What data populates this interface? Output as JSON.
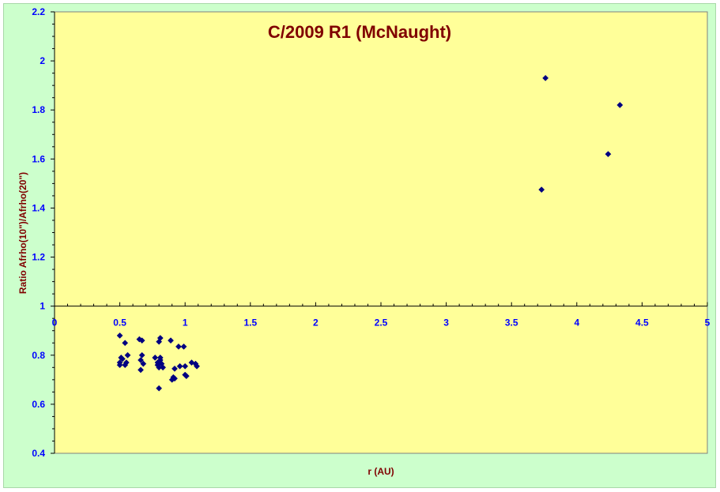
{
  "chart_data": {
    "type": "scatter",
    "title": "C/2009 R1 (McNaught)",
    "xlabel": "r (AU)",
    "ylabel": "Ratio Afrho(10\")/Afrho(20\")",
    "xlim": [
      0,
      5
    ],
    "ylim": [
      0.4,
      2.2
    ],
    "x_ticks": [
      "0",
      "0.5",
      "1",
      "1.5",
      "2",
      "2.5",
      "3",
      "3.5",
      "4",
      "4.5",
      "5"
    ],
    "y_ticks": [
      "0.4",
      "0.6",
      "0.8",
      "1",
      "1.2",
      "1.4",
      "1.6",
      "1.8",
      "2",
      "2.2"
    ],
    "x_axis_crosses_y": 1,
    "grid": false,
    "legend": "none",
    "colors": {
      "plot_background": "#ffff99",
      "chart_background": "#ccffcc",
      "marker": "#000080",
      "title": "#800000",
      "tick_labels": "#0000ff"
    },
    "series": [
      {
        "marker": "diamond",
        "points": [
          [
            0.5,
            0.88
          ],
          [
            0.5,
            0.77
          ],
          [
            0.51,
            0.79
          ],
          [
            0.5,
            0.76
          ],
          [
            0.52,
            0.785
          ],
          [
            0.54,
            0.85
          ],
          [
            0.54,
            0.76
          ],
          [
            0.55,
            0.77
          ],
          [
            0.56,
            0.8
          ],
          [
            0.65,
            0.865
          ],
          [
            0.67,
            0.86
          ],
          [
            0.66,
            0.78
          ],
          [
            0.67,
            0.8
          ],
          [
            0.66,
            0.74
          ],
          [
            0.68,
            0.765
          ],
          [
            0.77,
            0.79
          ],
          [
            0.79,
            0.77
          ],
          [
            0.79,
            0.76
          ],
          [
            0.8,
            0.855
          ],
          [
            0.81,
            0.87
          ],
          [
            0.81,
            0.79
          ],
          [
            0.81,
            0.78
          ],
          [
            0.82,
            0.765
          ],
          [
            0.83,
            0.75
          ],
          [
            0.8,
            0.75
          ],
          [
            0.8,
            0.665
          ],
          [
            0.89,
            0.86
          ],
          [
            0.9,
            0.7
          ],
          [
            0.91,
            0.71
          ],
          [
            0.92,
            0.745
          ],
          [
            0.92,
            0.705
          ],
          [
            0.95,
            0.835
          ],
          [
            0.96,
            0.755
          ],
          [
            0.99,
            0.835
          ],
          [
            1.0,
            0.755
          ],
          [
            1.01,
            0.715
          ],
          [
            1.0,
            0.72
          ],
          [
            1.05,
            0.77
          ],
          [
            1.09,
            0.755
          ],
          [
            1.08,
            0.765
          ],
          [
            3.73,
            1.475
          ],
          [
            3.76,
            1.93
          ],
          [
            4.24,
            1.62
          ],
          [
            4.33,
            1.82
          ]
        ]
      }
    ]
  }
}
